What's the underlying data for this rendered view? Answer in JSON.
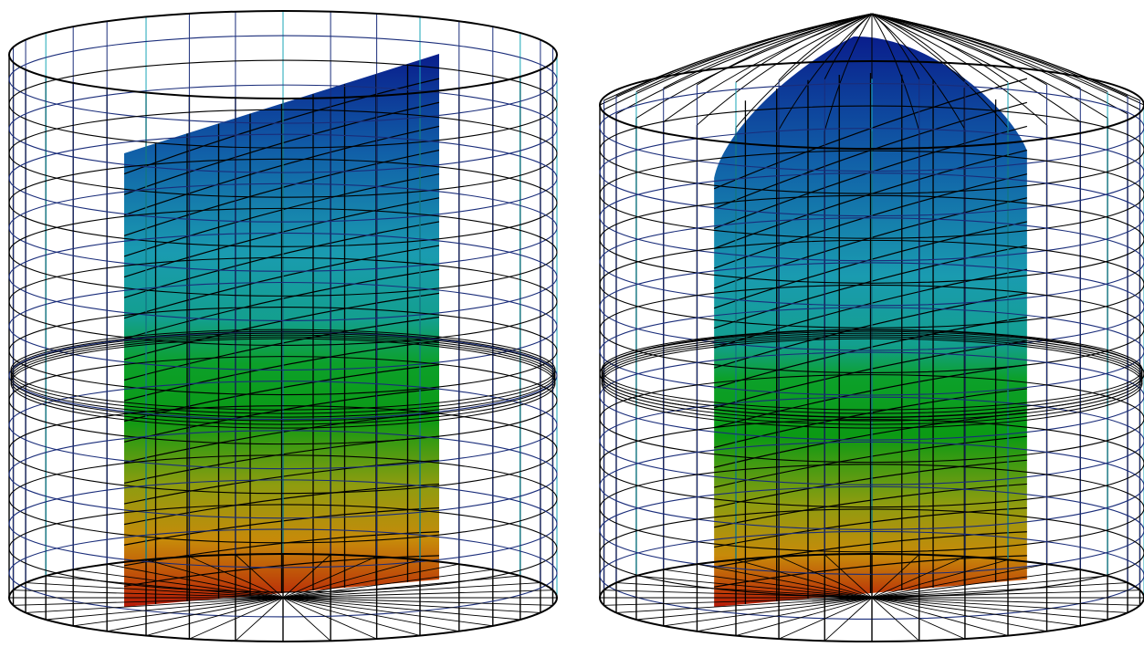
{
  "figure": {
    "panels": [
      {
        "id": "left-tank",
        "shape": "cylinder",
        "roof": "flat"
      },
      {
        "id": "right-tank",
        "shape": "cylinder",
        "roof": "dome"
      }
    ],
    "mesh": {
      "vertical_lines": 36,
      "horizontal_rings": 22,
      "section_grid_columns": 10,
      "section_grid_rows": 22
    },
    "colors": {
      "background": "#ffffff",
      "wire_dark": "#000000",
      "wire_cyan": "#1aa6b7",
      "wire_blue": "#1a2d7a",
      "colormap": [
        "#0a1e8c",
        "#1160a8",
        "#1a9bb0",
        "#13a06a",
        "#0b9a14",
        "#8e9c10",
        "#c78a0a",
        "#b81a08"
      ]
    }
  }
}
